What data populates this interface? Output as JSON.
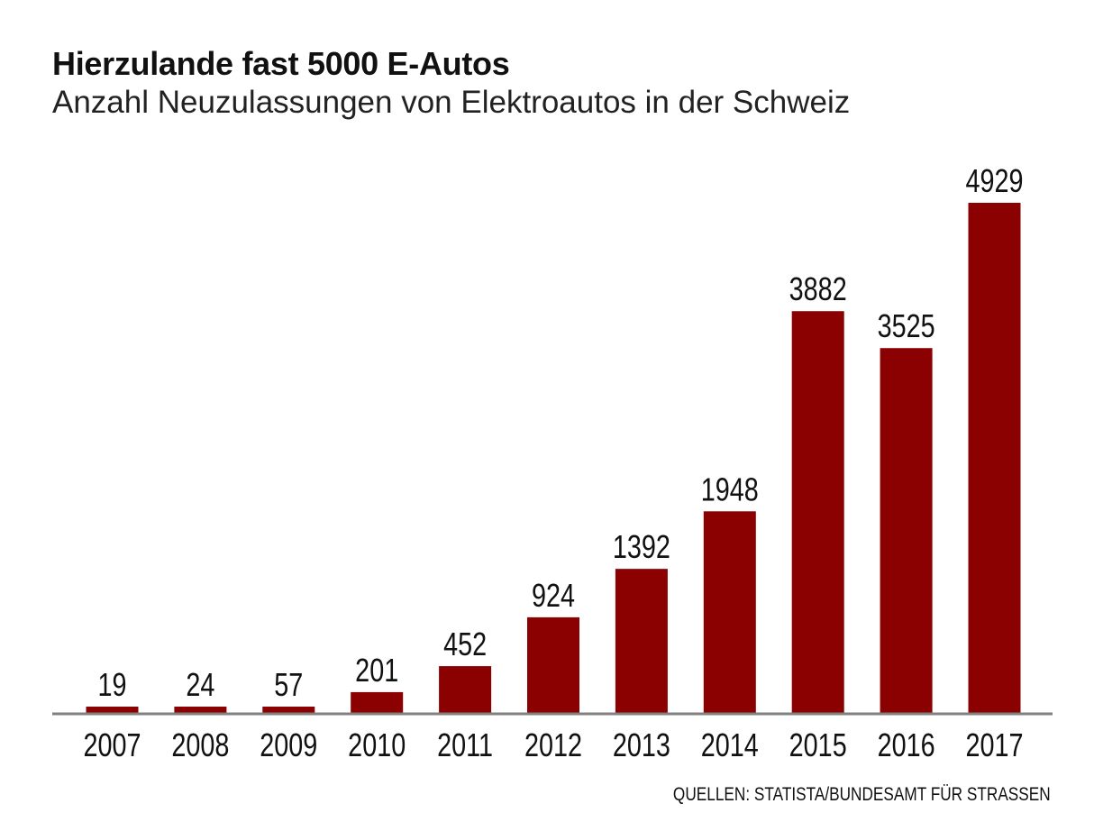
{
  "chart_data": {
    "type": "bar",
    "title": "Hierzulande fast 5000 E-Autos",
    "subtitle": "Anzahl Neuzulassungen von Elektroautos in der Schweiz",
    "categories": [
      "2007",
      "2008",
      "2009",
      "2010",
      "2011",
      "2012",
      "2013",
      "2014",
      "2015",
      "2016",
      "2017"
    ],
    "values": [
      19,
      24,
      57,
      201,
      452,
      924,
      1392,
      1948,
      3882,
      3525,
      4929
    ],
    "xlabel": "",
    "ylabel": "",
    "ylim": [
      0,
      5000
    ],
    "grid": false,
    "data_labels": true,
    "bar_color": "#8b0000",
    "axis_color": "#808080",
    "source": "QUELLEN: STATISTA/BUNDESAMT FÜR STRASSEN"
  }
}
